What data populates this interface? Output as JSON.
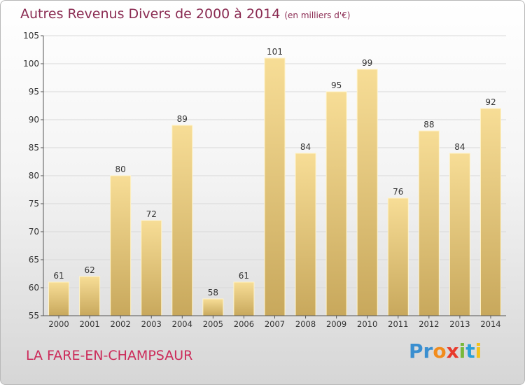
{
  "title": "Autres Revenus Divers de 2000 à 2014",
  "subtitle": "(en milliers d'€)",
  "place_name": "LA FARE-EN-CHAMPSAUR",
  "logo": {
    "letters": [
      "P",
      "r",
      "o",
      "x",
      "i",
      "t",
      "i"
    ],
    "colors": [
      "#3a8fd0",
      "#3a8fd0",
      "#f28c1c",
      "#e83a2c",
      "#78b83a",
      "#2a9fd8",
      "#f2c21c"
    ]
  },
  "colors": {
    "title": "#8a2b52",
    "place": "#cc2b5a",
    "bar_top": "#f7dd96",
    "bar_bottom": "#c8a85c",
    "grid": "#d9d9d9",
    "axis": "#555555"
  },
  "chart_data": {
    "type": "bar",
    "categories": [
      "2000",
      "2001",
      "2002",
      "2003",
      "2004",
      "2005",
      "2006",
      "2007",
      "2008",
      "2009",
      "2010",
      "2011",
      "2012",
      "2013",
      "2014"
    ],
    "values": [
      61,
      62,
      80,
      72,
      89,
      58,
      61,
      101,
      84,
      95,
      99,
      76,
      88,
      84,
      92
    ],
    "ylim": [
      55,
      105
    ],
    "yticks": [
      55,
      60,
      65,
      70,
      75,
      80,
      85,
      90,
      95,
      100,
      105
    ],
    "grid": true,
    "xlabel": "",
    "ylabel": ""
  }
}
